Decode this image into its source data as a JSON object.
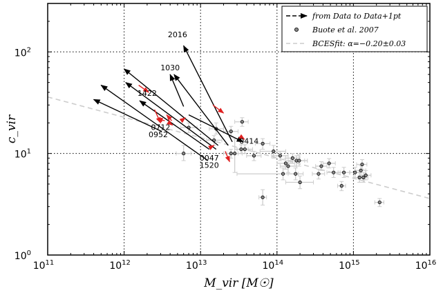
{
  "chart_data": {
    "type": "scatter",
    "xlabel": "M_vir [M☉]",
    "ylabel": "c_vir",
    "x_scale": "log",
    "y_scale": "log",
    "xlim": [
      100000000000.0,
      1e+16
    ],
    "ylim": [
      1,
      300
    ],
    "x_ticks": [
      {
        "value": 100000000000.0,
        "base": "10",
        "exp": "11"
      },
      {
        "value": 1000000000000.0,
        "base": "10",
        "exp": "12"
      },
      {
        "value": 10000000000000.0,
        "base": "10",
        "exp": "13"
      },
      {
        "value": 100000000000000.0,
        "base": "10",
        "exp": "14"
      },
      {
        "value": 1000000000000000.0,
        "base": "10",
        "exp": "15"
      },
      {
        "value": 1e+16,
        "base": "10",
        "exp": "16"
      }
    ],
    "y_ticks": [
      {
        "value": 1,
        "base": "10",
        "exp": "0"
      },
      {
        "value": 10,
        "base": "10",
        "exp": "1"
      },
      {
        "value": 100,
        "base": "10",
        "exp": "2"
      }
    ],
    "grid": true,
    "legend_position": "top-right",
    "legend": [
      {
        "kind": "arrow",
        "label": "from Data to Data+1pt"
      },
      {
        "kind": "point",
        "label": "Buote et al. 2007"
      },
      {
        "kind": "dashed-line",
        "label": "BCESfit: α=−0.20±0.03"
      }
    ],
    "fit_line": {
      "points": [
        [
          100000000000.0,
          36
        ],
        [
          1e+16,
          3.6
        ]
      ],
      "color": "#cccccc"
    },
    "arrows": [
      {
        "from": [
          26000000000000.0,
          13
        ],
        "to": [
          6000000000000.0,
          115
        ]
      },
      {
        "from": [
          23000000000000.0,
          12
        ],
        "to": [
          4500000000000.0,
          60
        ]
      },
      {
        "from": [
          17000000000000.0,
          12
        ],
        "to": [
          1000000000000.0,
          68
        ]
      },
      {
        "from": [
          16000000000000.0,
          11
        ],
        "to": [
          1050000000000.0,
          50
        ]
      },
      {
        "from": [
          12500000000000.0,
          8.5
        ],
        "to": [
          500000000000.0,
          47
        ]
      },
      {
        "from": [
          3100000000000.0,
          16.5
        ],
        "to": [
          400000000000.0,
          34
        ]
      },
      {
        "from": [
          7000000000000.0,
          24
        ],
        "to": [
          36000000000000.0,
          13
        ]
      },
      {
        "from": [
          6000000000000.0,
          29
        ],
        "to": [
          4000000000000.0,
          60
        ]
      },
      {
        "from": [
          13000000000000.0,
          11
        ],
        "to": [
          1600000000000.0,
          33
        ]
      }
    ],
    "red_arrows": [
      {
        "from": [
          1550000000000.0,
          47
        ],
        "to": [
          2100000000000.0,
          40
        ]
      },
      {
        "from": [
          14500000000000.0,
          30
        ],
        "to": [
          20000000000000.0,
          25
        ]
      },
      {
        "from": [
          3400000000000.0,
          21
        ],
        "to": [
          2700000000000.0,
          22
        ]
      },
      {
        "from": [
          5600000000000.0,
          21
        ],
        "to": [
          6300000000000.0,
          22.5
        ]
      },
      {
        "from": [
          2500000000000.0,
          27
        ],
        "to": [
          3000000000000.0,
          20
        ]
      },
      {
        "from": [
          3900000000000.0,
          20
        ],
        "to": [
          4300000000000.0,
          19
        ]
      },
      {
        "from": [
          13500000000000.0,
          11.5
        ],
        "to": [
          15000000000000.0,
          12
        ]
      },
      {
        "from": [
          21000000000000.0,
          10.5
        ],
        "to": [
          24000000000000.0,
          8.3
        ]
      },
      {
        "from": [
          34000000000000.0,
          14.5
        ],
        "to": [
          37500000000000.0,
          13.8
        ]
      },
      {
        "from": [
          4200000000000.0,
          21
        ],
        "to": [
          3600000000000.0,
          24
        ]
      }
    ],
    "labels": [
      {
        "text": "2016",
        "x": 5000000000000.0,
        "y": 140
      },
      {
        "text": "1030",
        "x": 4000000000000.0,
        "y": 66
      },
      {
        "text": "1422",
        "x": 2000000000000.0,
        "y": 37
      },
      {
        "text": "0712",
        "x": 3000000000000.0,
        "y": 17
      },
      {
        "text": "0952",
        "x": 2800000000000.0,
        "y": 14.5
      },
      {
        "text": "0414",
        "x": 43000000000000.0,
        "y": 12.5
      },
      {
        "text": "0047",
        "x": 13000000000000.0,
        "y": 8.5
      },
      {
        "text": "1520",
        "x": 13000000000000.0,
        "y": 7.2
      }
    ],
    "points": [
      {
        "x": 35000000000000.0,
        "y": 20.5,
        "xerr": [
          28000000000000.0,
          42000000000000.0
        ],
        "yerr": [
          18.5,
          22.5
        ]
      },
      {
        "x": 16000000000000.0,
        "y": 17.5,
        "xerr": [
          13000000000000.0,
          20000000000000.0
        ],
        "yerr": [
          15.5,
          20
        ]
      },
      {
        "x": 7000000000000.0,
        "y": 18,
        "xerr": [
          5500000000000.0,
          9000000000000.0
        ],
        "yerr": [
          16,
          20
        ]
      },
      {
        "x": 6000000000000.0,
        "y": 10,
        "xerr": [
          4800000000000.0,
          7500000000000.0
        ],
        "yerr": [
          8.5,
          12
        ]
      },
      {
        "x": 25000000000000.0,
        "y": 16.5,
        "xerr": [
          20000000000000.0,
          31000000000000.0
        ],
        "yerr": [
          14.5,
          18.5
        ]
      },
      {
        "x": 15000000000000.0,
        "y": 13.5,
        "xerr": [
          12000000000000.0,
          19000000000000.0
        ],
        "yerr": [
          12,
          15
        ]
      },
      {
        "x": 38000000000000.0,
        "y": 11,
        "xerr": [
          30000000000000.0,
          48000000000000.0
        ],
        "yerr": [
          10,
          12.2
        ]
      },
      {
        "x": 34000000000000.0,
        "y": 11,
        "xerr": [
          28000000000000.0,
          42000000000000.0
        ],
        "yerr": [
          10,
          12.2
        ]
      },
      {
        "x": 28000000000000.0,
        "y": 10,
        "xerr": [
          22000000000000.0,
          35000000000000.0
        ],
        "yerr": [
          6.5,
          14
        ]
      },
      {
        "x": 25000000000000.0,
        "y": 10,
        "xerr": [
          20000000000000.0,
          31000000000000.0
        ],
        "yerr": [
          9,
          11
        ]
      },
      {
        "x": 50000000000000.0,
        "y": 9.5,
        "xerr": [
          40000000000000.0,
          62000000000000.0
        ],
        "yerr": [
          8.5,
          10.5
        ]
      },
      {
        "x": 65000000000000.0,
        "y": 12.5,
        "xerr": [
          52000000000000.0,
          81000000000000.0
        ],
        "yerr": [
          11,
          14
        ]
      },
      {
        "x": 65000000000000.0,
        "y": 3.7,
        "xerr": [
          58000000000000.0,
          73000000000000.0
        ],
        "yerr": [
          3.1,
          4.4
        ]
      },
      {
        "x": 90000000000000.0,
        "y": 10.5,
        "xerr": [
          60000000000000.0,
          130000000000000.0
        ],
        "yerr": [
          9,
          12
        ]
      },
      {
        "x": 110000000000000.0,
        "y": 9.5,
        "xerr": [
          85000000000000.0,
          140000000000000.0
        ],
        "yerr": [
          8.5,
          10.5
        ]
      },
      {
        "x": 130000000000000.0,
        "y": 8,
        "xerr": [
          100000000000000.0,
          170000000000000.0
        ],
        "yerr": [
          7,
          9
        ]
      },
      {
        "x": 120000000000000.0,
        "y": 6.3,
        "xerr": [
          30000000000000.0,
          190000000000000.0
        ],
        "yerr": [
          5.5,
          7.2
        ]
      },
      {
        "x": 140000000000000.0,
        "y": 7.5,
        "xerr": [
          110000000000000.0,
          180000000000000.0
        ],
        "yerr": [
          6.5,
          8.5
        ]
      },
      {
        "x": 160000000000000.0,
        "y": 9,
        "xerr": [
          130000000000000.0,
          200000000000000.0
        ],
        "yerr": [
          8,
          10
        ]
      },
      {
        "x": 180000000000000.0,
        "y": 8.5,
        "xerr": [
          140000000000000.0,
          230000000000000.0
        ],
        "yerr": [
          7.5,
          9.5
        ]
      },
      {
        "x": 175000000000000.0,
        "y": 6.3,
        "xerr": [
          140000000000000.0,
          220000000000000.0
        ],
        "yerr": [
          5.5,
          7.2
        ]
      },
      {
        "x": 195000000000000.0,
        "y": 8.5,
        "xerr": [
          150000000000000.0,
          250000000000000.0
        ],
        "yerr": [
          7.5,
          9.7
        ]
      },
      {
        "x": 200000000000000.0,
        "y": 5.2,
        "xerr": [
          130000000000000.0,
          300000000000000.0
        ],
        "yerr": [
          4.5,
          6
        ]
      },
      {
        "x": 350000000000000.0,
        "y": 6.3,
        "xerr": [
          290000000000000.0,
          420000000000000.0
        ],
        "yerr": [
          5.6,
          7
        ]
      },
      {
        "x": 380000000000000.0,
        "y": 7.5,
        "xerr": [
          320000000000000.0,
          450000000000000.0
        ],
        "yerr": [
          6.8,
          8.3
        ]
      },
      {
        "x": 480000000000000.0,
        "y": 8,
        "xerr": [
          400000000000000.0,
          580000000000000.0
        ],
        "yerr": [
          7.2,
          8.9
        ]
      },
      {
        "x": 550000000000000.0,
        "y": 6.5,
        "xerr": [
          450000000000000.0,
          670000000000000.0
        ],
        "yerr": [
          5.8,
          7.3
        ]
      },
      {
        "x": 700000000000000.0,
        "y": 4.8,
        "xerr": [
          620000000000000.0,
          790000000000000.0
        ],
        "yerr": [
          4.3,
          5.3
        ]
      },
      {
        "x": 750000000000000.0,
        "y": 6.5,
        "xerr": [
          630000000000000.0,
          890000000000000.0
        ],
        "yerr": [
          5.8,
          7.3
        ]
      },
      {
        "x": 1050000000000000.0,
        "y": 6.5,
        "xerr": [
          900000000000000.0,
          1200000000000000.0
        ],
        "yerr": [
          5.8,
          7.3
        ]
      },
      {
        "x": 1200000000000000.0,
        "y": 5.8,
        "xerr": [
          1000000000000000.0,
          1400000000000000.0
        ],
        "yerr": [
          5.2,
          6.5
        ]
      },
      {
        "x": 1250000000000000.0,
        "y": 6.8,
        "xerr": [
          1050000000000000.0,
          1450000000000000.0
        ],
        "yerr": [
          6,
          7.6
        ]
      },
      {
        "x": 1300000000000000.0,
        "y": 7.8,
        "xerr": [
          1100000000000000.0,
          1500000000000000.0
        ],
        "yerr": [
          7,
          8.7
        ]
      },
      {
        "x": 1350000000000000.0,
        "y": 5.8,
        "xerr": [
          1150000000000000.0,
          1550000000000000.0
        ],
        "yerr": [
          5.2,
          6.5
        ]
      },
      {
        "x": 1450000000000000.0,
        "y": 6.1,
        "xerr": [
          1250000000000000.0,
          1700000000000000.0
        ],
        "yerr": [
          5.5,
          6.8
        ]
      },
      {
        "x": 2200000000000000.0,
        "y": 3.3,
        "xerr": [
          1900000000000000.0,
          2500000000000000.0
        ],
        "yerr": [
          3.0,
          3.6
        ]
      }
    ]
  },
  "colors": {
    "arrow": "#000000",
    "red_arrow": "#e02020",
    "point_fill": "#888888",
    "errorbar": "#cccccc",
    "grid": "#000000"
  }
}
